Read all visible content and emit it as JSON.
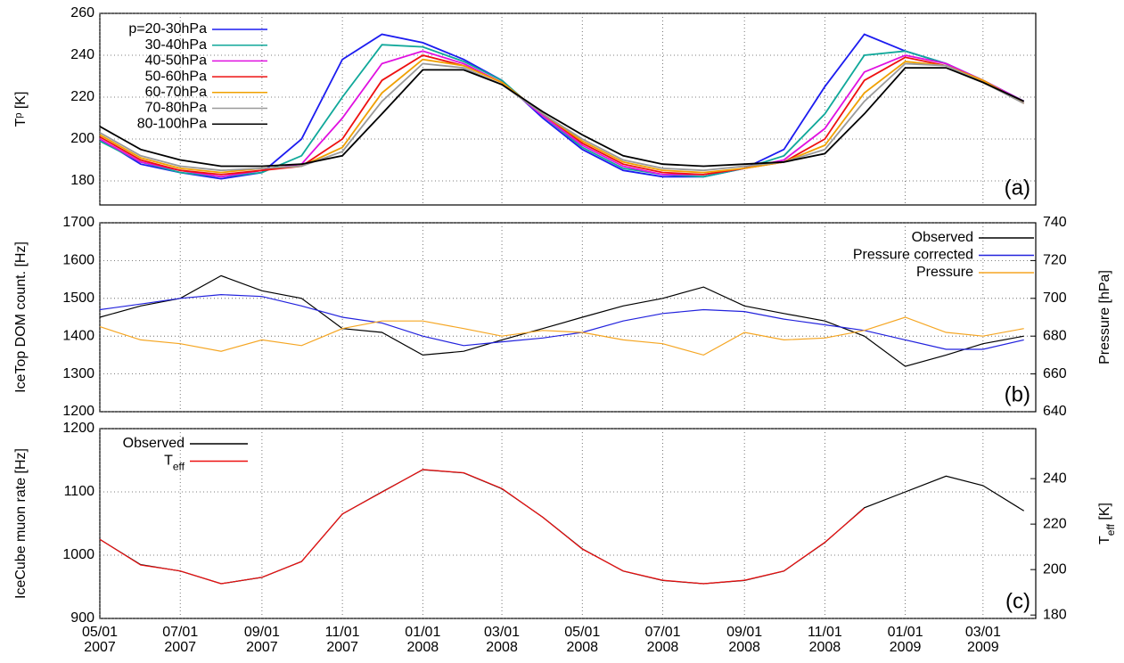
{
  "chart_data": [
    {
      "type": "line",
      "panel_label": "(a)",
      "ylabel": "Tᵖ [K]",
      "legend": "upper left",
      "x": [
        "2007-05-01",
        "2007-06-01",
        "2007-07-01",
        "2007-08-01",
        "2007-09-01",
        "2007-10-01",
        "2007-11-01",
        "2007-12-01",
        "2008-01-01",
        "2008-02-01",
        "2008-03-01",
        "2008-04-01",
        "2008-05-01",
        "2008-06-01",
        "2008-07-01",
        "2008-08-01",
        "2008-09-01",
        "2008-10-01",
        "2008-11-01",
        "2008-12-01",
        "2009-01-01",
        "2009-02-01",
        "2009-03-01",
        "2009-04-01"
      ],
      "ylim": [
        168.5,
        260
      ],
      "yticks": [
        180,
        200,
        220,
        240,
        260
      ],
      "grid": true,
      "series": [
        {
          "name": "p=20-30hPa",
          "color": "#1c1cf0",
          "values": [
            200,
            188,
            184,
            181,
            184,
            200,
            238,
            250,
            246,
            238,
            228,
            210,
            195,
            185,
            182,
            182,
            186,
            195,
            225,
            250,
            242,
            236,
            228,
            218
          ]
        },
        {
          "name": "30-40hPa",
          "color": "#10a89a",
          "values": [
            199,
            189,
            184,
            182,
            184,
            192,
            220,
            245,
            244,
            237,
            228,
            211,
            196,
            186,
            183,
            182,
            186,
            192,
            212,
            240,
            242,
            236,
            228,
            218
          ]
        },
        {
          "name": "40-50hPa",
          "color": "#e010e0",
          "values": [
            200,
            189,
            185,
            182,
            185,
            188,
            210,
            236,
            242,
            236,
            227,
            211,
            197,
            187,
            183,
            183,
            186,
            190,
            205,
            232,
            240,
            236,
            228,
            218
          ]
        },
        {
          "name": "50-60hPa",
          "color": "#ee1010",
          "values": [
            201,
            190,
            185,
            183,
            185,
            187,
            200,
            228,
            240,
            235,
            227,
            212,
            198,
            188,
            184,
            183,
            186,
            189,
            200,
            228,
            239,
            235,
            228,
            217
          ]
        },
        {
          "name": "60-70hPa",
          "color": "#f0a000",
          "values": [
            202,
            191,
            186,
            184,
            186,
            187,
            196,
            222,
            238,
            235,
            227,
            212,
            199,
            189,
            185,
            184,
            186,
            189,
            197,
            222,
            237,
            235,
            228,
            217
          ]
        },
        {
          "name": "70-80hPa",
          "color": "#999999",
          "values": [
            203,
            192,
            187,
            185,
            186,
            187,
            194,
            218,
            236,
            234,
            226,
            212,
            200,
            190,
            186,
            185,
            187,
            189,
            195,
            218,
            236,
            235,
            227,
            217
          ]
        },
        {
          "name": "80-100hPa",
          "color": "#000000",
          "values": [
            206,
            195,
            190,
            187,
            187,
            188,
            192,
            212,
            233,
            233,
            226,
            213,
            202,
            192,
            188,
            187,
            188,
            189,
            193,
            212,
            234,
            234,
            227,
            218
          ]
        }
      ]
    },
    {
      "type": "line",
      "panel_label": "(b)",
      "ylabel": "IceTop DOM count. [Hz]",
      "y2label": "Pressure [hPa]",
      "y2color": "#f5a623",
      "legend": "upper right",
      "x": [
        "2007-05-01",
        "2007-06-01",
        "2007-07-01",
        "2007-08-01",
        "2007-09-01",
        "2007-10-01",
        "2007-11-01",
        "2007-12-01",
        "2008-01-01",
        "2008-02-01",
        "2008-03-01",
        "2008-04-01",
        "2008-05-01",
        "2008-06-01",
        "2008-07-01",
        "2008-08-01",
        "2008-09-01",
        "2008-10-01",
        "2008-11-01",
        "2008-12-01",
        "2009-01-01",
        "2009-02-01",
        "2009-03-01",
        "2009-04-01"
      ],
      "ylim": [
        1200,
        1700
      ],
      "yticks": [
        1200,
        1300,
        1400,
        1500,
        1600,
        1700
      ],
      "y2lim": [
        640,
        740
      ],
      "y2ticks": [
        640,
        660,
        680,
        700,
        720,
        740
      ],
      "grid": true,
      "series": [
        {
          "name": "Observed",
          "color": "#000000",
          "values": [
            1450,
            1480,
            1500,
            1560,
            1520,
            1500,
            1420,
            1410,
            1350,
            1360,
            1390,
            1420,
            1450,
            1480,
            1500,
            1530,
            1480,
            1460,
            1440,
            1400,
            1320,
            1350,
            1380,
            1400
          ]
        },
        {
          "name": "Pressure corrected",
          "color": "#2222dd",
          "values": [
            1470,
            1485,
            1500,
            1510,
            1505,
            1480,
            1450,
            1435,
            1400,
            1375,
            1385,
            1395,
            1410,
            1440,
            1460,
            1470,
            1465,
            1445,
            1430,
            1415,
            1390,
            1365,
            1365,
            1390
          ]
        },
        {
          "name": "Pressure",
          "color": "#f5a623",
          "axis": "y2",
          "values": [
            685,
            678,
            676,
            672,
            678,
            675,
            684,
            688,
            688,
            684,
            680,
            683,
            682,
            678,
            676,
            670,
            682,
            678,
            679,
            683,
            690,
            682,
            680,
            684
          ]
        }
      ]
    },
    {
      "type": "line",
      "panel_label": "(c)",
      "ylabel": "IceCube muon rate [Hz]",
      "y2label": "Teff [K]",
      "y2color": "#ee1010",
      "legend": "upper left",
      "x": [
        "2007-05-01",
        "2007-06-01",
        "2007-07-01",
        "2007-08-01",
        "2007-09-01",
        "2007-10-01",
        "2007-11-01",
        "2007-12-01",
        "2008-01-01",
        "2008-02-01",
        "2008-03-01",
        "2008-04-01",
        "2008-05-01",
        "2008-06-01",
        "2008-07-01",
        "2008-08-01",
        "2008-09-01",
        "2008-10-01",
        "2008-11-01",
        "2008-12-01",
        "2009-01-01",
        "2009-02-01",
        "2009-03-01",
        "2009-04-01"
      ],
      "xlim": [
        "2007-05-01",
        "2009-04-10"
      ],
      "xticks": [
        {
          "value": "2007-05-01",
          "label": "05/01 2007"
        },
        {
          "value": "2007-07-01",
          "label": "07/01 2007"
        },
        {
          "value": "2007-09-01",
          "label": "09/01 2007"
        },
        {
          "value": "2007-11-01",
          "label": "11/01 2007"
        },
        {
          "value": "2008-01-01",
          "label": "01/01 2008"
        },
        {
          "value": "2008-03-01",
          "label": "03/01 2008"
        },
        {
          "value": "2008-05-01",
          "label": "05/01 2008"
        },
        {
          "value": "2008-07-01",
          "label": "07/01 2008"
        },
        {
          "value": "2008-09-01",
          "label": "09/01 2008"
        },
        {
          "value": "2008-11-01",
          "label": "11/01 2008"
        },
        {
          "value": "2009-01-01",
          "label": "01/01 2009"
        },
        {
          "value": "2009-03-01",
          "label": "03/01 2009"
        }
      ],
      "ylim": [
        900,
        1200
      ],
      "yticks": [
        900,
        1000,
        1100,
        1200
      ],
      "y2lim": [
        178.5,
        262
      ],
      "y2ticks": [
        180,
        200,
        220,
        240
      ],
      "grid": true,
      "series": [
        {
          "name": "Observed",
          "color": "#000000",
          "values": [
            1025,
            985,
            975,
            955,
            965,
            990,
            1065,
            1100,
            1135,
            1130,
            1105,
            1060,
            1010,
            975,
            960,
            955,
            960,
            975,
            1020,
            1075,
            1100,
            1125,
            1110,
            1070
          ]
        },
        {
          "name": "Teff",
          "color": "#ee1010",
          "axis": "y2",
          "values": [
            213.3,
            202,
            199.4,
            193.8,
            196.6,
            203.5,
            224.5,
            234,
            244,
            242.6,
            235.7,
            223,
            209,
            199.4,
            195.3,
            193.8,
            195.3,
            199.4,
            212,
            227,
            null,
            null,
            null,
            null
          ]
        }
      ]
    }
  ]
}
